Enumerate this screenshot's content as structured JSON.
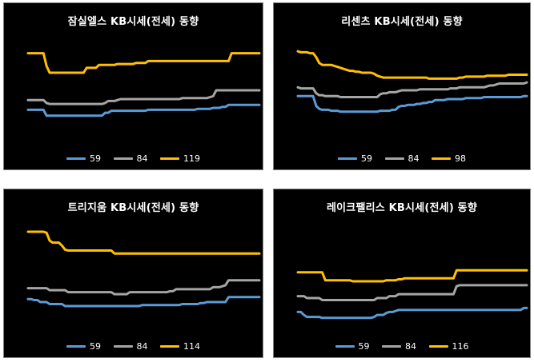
{
  "colors": {
    "59": "#5b9bd5",
    "84": "#a5a5a5",
    "large": "#ffc000"
  },
  "chart_data": [
    {
      "type": "line",
      "title": "잠실엘스 KB시세(전세) 동향",
      "ylim": [
        0,
        100
      ],
      "series": [
        {
          "name": "59",
          "color": "#5b9bd5",
          "values": [
            30,
            30,
            30,
            30,
            30,
            30,
            24,
            24,
            24,
            24,
            24,
            24,
            24,
            24,
            24,
            24,
            24,
            24,
            24,
            24,
            24,
            24,
            24,
            24,
            24,
            27,
            27,
            29,
            29,
            29,
            29,
            29,
            29,
            29,
            29,
            29,
            29,
            29,
            29,
            30,
            30,
            30,
            30,
            30,
            30,
            30,
            30,
            30,
            30,
            30,
            30,
            30,
            30,
            30,
            30,
            31,
            31,
            31,
            31,
            31,
            32,
            32,
            32,
            33,
            33,
            35,
            35,
            35,
            35,
            35,
            35,
            35,
            35,
            35,
            35,
            35
          ]
        },
        {
          "name": "84",
          "color": "#a5a5a5",
          "values": [
            40,
            40,
            40,
            40,
            40,
            40,
            37,
            36,
            36,
            36,
            36,
            36,
            36,
            36,
            36,
            36,
            36,
            36,
            36,
            36,
            36,
            36,
            36,
            36,
            36,
            37,
            39,
            39,
            39,
            40,
            41,
            41,
            41,
            41,
            41,
            41,
            41,
            41,
            41,
            41,
            41,
            41,
            41,
            41,
            41,
            41,
            41,
            41,
            41,
            41,
            42,
            42,
            42,
            42,
            42,
            42,
            42,
            42,
            42,
            43,
            44,
            50,
            50,
            50,
            50,
            50,
            50,
            50,
            50,
            50,
            50,
            50,
            50,
            50,
            50,
            50
          ]
        },
        {
          "name": "119",
          "color": "#ffc000",
          "values": [
            88,
            88,
            88,
            88,
            88,
            88,
            75,
            68,
            68,
            68,
            68,
            68,
            68,
            68,
            68,
            68,
            68,
            68,
            68,
            73,
            73,
            73,
            73,
            76,
            76,
            76,
            76,
            76,
            76,
            77,
            77,
            77,
            77,
            77,
            77,
            78,
            78,
            78,
            78,
            80,
            80,
            80,
            80,
            80,
            80,
            80,
            80,
            80,
            80,
            80,
            80,
            80,
            80,
            80,
            80,
            80,
            80,
            80,
            80,
            80,
            80,
            80,
            80,
            80,
            80,
            80,
            88,
            88,
            88,
            88,
            88,
            88,
            88,
            88,
            88,
            88
          ]
        }
      ]
    },
    {
      "type": "line",
      "title": "리센츠 KB시세(전세) 동향",
      "ylim": [
        0,
        100
      ],
      "series": [
        {
          "name": "59",
          "color": "#5b9bd5",
          "values": [
            44,
            44,
            44,
            44,
            44,
            44,
            34,
            31,
            30,
            30,
            30,
            29,
            29,
            29,
            28,
            28,
            28,
            28,
            28,
            28,
            28,
            28,
            28,
            28,
            28,
            28,
            28,
            29,
            29,
            29,
            29,
            30,
            30,
            33,
            34,
            34,
            35,
            35,
            35,
            36,
            36,
            37,
            37,
            38,
            38,
            40,
            40,
            40,
            40,
            41,
            41,
            41,
            41,
            41,
            41,
            42,
            42,
            42,
            42,
            42,
            42,
            43,
            43,
            43,
            43,
            43,
            43,
            43,
            43,
            43,
            43,
            43,
            43,
            43,
            44,
            44
          ]
        },
        {
          "name": "84",
          "color": "#a5a5a5",
          "values": [
            53,
            52,
            52,
            52,
            52,
            52,
            47,
            45,
            45,
            44,
            44,
            44,
            44,
            44,
            43,
            43,
            43,
            43,
            43,
            43,
            43,
            43,
            43,
            43,
            43,
            43,
            43,
            46,
            47,
            47,
            48,
            48,
            48,
            49,
            50,
            50,
            50,
            50,
            50,
            50,
            51,
            51,
            51,
            51,
            51,
            51,
            51,
            51,
            51,
            51,
            52,
            52,
            52,
            53,
            53,
            53,
            53,
            53,
            53,
            53,
            53,
            53,
            54,
            55,
            55,
            56,
            57,
            57,
            57,
            57,
            57,
            57,
            57,
            57,
            57,
            58
          ]
        },
        {
          "name": "98",
          "color": "#ffc000",
          "values": [
            90,
            89,
            89,
            89,
            88,
            88,
            84,
            78,
            76,
            76,
            76,
            76,
            75,
            74,
            73,
            72,
            71,
            70,
            70,
            69,
            69,
            68,
            68,
            68,
            68,
            67,
            65,
            64,
            63,
            63,
            63,
            63,
            63,
            63,
            63,
            63,
            63,
            63,
            63,
            63,
            63,
            63,
            63,
            62,
            62,
            62,
            62,
            62,
            62,
            62,
            62,
            62,
            62,
            63,
            63,
            64,
            64,
            64,
            64,
            64,
            64,
            64,
            65,
            65,
            65,
            65,
            65,
            65,
            65,
            66,
            66,
            66,
            66,
            66,
            66,
            66
          ]
        }
      ]
    },
    {
      "type": "line",
      "title": "트리지움 KB시세(전세) 동향",
      "ylim": [
        0,
        100
      ],
      "series": [
        {
          "name": "59",
          "color": "#5b9bd5",
          "values": [
            28,
            28,
            27,
            27,
            25,
            25,
            25,
            23,
            23,
            23,
            23,
            23,
            21,
            21,
            21,
            21,
            21,
            21,
            21,
            21,
            21,
            21,
            21,
            21,
            21,
            21,
            21,
            21,
            21,
            21,
            21,
            21,
            21,
            21,
            21,
            21,
            21,
            22,
            22,
            22,
            22,
            22,
            22,
            22,
            22,
            22,
            22,
            22,
            22,
            22,
            23,
            23,
            23,
            23,
            23,
            23,
            24,
            24,
            25,
            25,
            25,
            25,
            25,
            25,
            25,
            30,
            30,
            30,
            30,
            30,
            30,
            30,
            30,
            30,
            30,
            30
          ]
        },
        {
          "name": "84",
          "color": "#a5a5a5",
          "values": [
            39,
            39,
            39,
            39,
            39,
            39,
            39,
            37,
            37,
            37,
            37,
            37,
            37,
            35,
            35,
            35,
            35,
            35,
            35,
            35,
            35,
            35,
            35,
            35,
            35,
            35,
            35,
            35,
            33,
            33,
            33,
            33,
            33,
            35,
            35,
            35,
            35,
            35,
            35,
            35,
            35,
            35,
            35,
            35,
            35,
            35,
            36,
            36,
            38,
            38,
            38,
            38,
            38,
            38,
            38,
            38,
            38,
            38,
            38,
            38,
            40,
            40,
            40,
            41,
            42,
            47,
            47,
            47,
            47,
            47,
            47,
            47,
            47,
            47,
            47,
            47
          ]
        },
        {
          "name": "114",
          "color": "#ffc000",
          "values": [
            96,
            96,
            96,
            96,
            96,
            96,
            95,
            87,
            85,
            85,
            85,
            82,
            78,
            77,
            77,
            77,
            77,
            77,
            77,
            77,
            77,
            77,
            77,
            77,
            77,
            77,
            77,
            77,
            74,
            74,
            74,
            74,
            74,
            74,
            74,
            74,
            74,
            74,
            74,
            74,
            74,
            74,
            74,
            74,
            74,
            74,
            74,
            74,
            74,
            74,
            74,
            74,
            74,
            74,
            74,
            74,
            74,
            74,
            74,
            74,
            74,
            74,
            74,
            74,
            74,
            74,
            74,
            74,
            74,
            74,
            74,
            74,
            74,
            74,
            74,
            74
          ]
        }
      ]
    },
    {
      "type": "line",
      "title": "레이크팰리스 KB시세(전세) 동향",
      "ylim": [
        0,
        100
      ],
      "series": [
        {
          "name": "59",
          "color": "#5b9bd5",
          "values": [
            15,
            15,
            12,
            10,
            10,
            10,
            10,
            10,
            9,
            9,
            9,
            9,
            9,
            9,
            9,
            9,
            9,
            9,
            9,
            9,
            9,
            9,
            9,
            9,
            9,
            10,
            12,
            12,
            12,
            14,
            15,
            15,
            16,
            17,
            17,
            17,
            17,
            17,
            17,
            17,
            17,
            17,
            17,
            17,
            17,
            17,
            17,
            17,
            17,
            17,
            17,
            17,
            17,
            17,
            17,
            17,
            17,
            17,
            17,
            17,
            17,
            17,
            17,
            17,
            17,
            17,
            17,
            17,
            17,
            17,
            17,
            17,
            17,
            17,
            19,
            19
          ]
        },
        {
          "name": "84",
          "color": "#a5a5a5",
          "values": [
            31,
            31,
            31,
            29,
            29,
            29,
            29,
            29,
            27,
            27,
            27,
            27,
            27,
            27,
            27,
            27,
            27,
            27,
            27,
            27,
            27,
            27,
            27,
            27,
            27,
            27,
            29,
            29,
            29,
            29,
            31,
            31,
            31,
            33,
            33,
            33,
            33,
            33,
            33,
            33,
            33,
            33,
            33,
            33,
            33,
            33,
            33,
            33,
            33,
            33,
            33,
            33,
            41,
            42,
            42,
            42,
            42,
            42,
            42,
            42,
            42,
            42,
            42,
            42,
            42,
            42,
            42,
            42,
            42,
            42,
            42,
            42,
            42,
            42,
            42,
            42
          ]
        },
        {
          "name": "116",
          "color": "#ffc000",
          "values": [
            55,
            55,
            55,
            55,
            55,
            55,
            55,
            55,
            55,
            47,
            47,
            47,
            47,
            47,
            47,
            47,
            47,
            47,
            46,
            46,
            46,
            46,
            46,
            46,
            46,
            46,
            46,
            46,
            46,
            47,
            47,
            47,
            47,
            48,
            48,
            49,
            49,
            49,
            49,
            49,
            49,
            49,
            49,
            49,
            49,
            49,
            49,
            49,
            49,
            49,
            49,
            49,
            57,
            57,
            57,
            57,
            57,
            57,
            57,
            57,
            57,
            57,
            57,
            57,
            57,
            57,
            57,
            57,
            57,
            57,
            57,
            57,
            57,
            57,
            57,
            57
          ]
        }
      ]
    }
  ]
}
